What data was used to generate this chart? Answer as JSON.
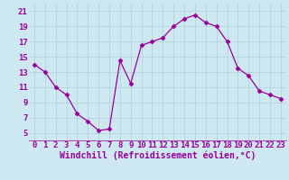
{
  "x": [
    0,
    1,
    2,
    3,
    4,
    5,
    6,
    7,
    8,
    9,
    10,
    11,
    12,
    13,
    14,
    15,
    16,
    17,
    18,
    19,
    20,
    21,
    22,
    23
  ],
  "y": [
    14.0,
    13.0,
    11.0,
    10.0,
    7.5,
    6.5,
    5.3,
    5.5,
    14.5,
    11.5,
    16.5,
    17.0,
    17.5,
    19.0,
    20.0,
    20.5,
    19.5,
    19.0,
    17.0,
    13.5,
    12.5,
    10.5,
    10.0,
    9.5
  ],
  "ylim": [
    4,
    22
  ],
  "xlim": [
    -0.5,
    23.5
  ],
  "yticks": [
    5,
    7,
    9,
    11,
    13,
    15,
    17,
    19,
    21
  ],
  "xticks": [
    0,
    1,
    2,
    3,
    4,
    5,
    6,
    7,
    8,
    9,
    10,
    11,
    12,
    13,
    14,
    15,
    16,
    17,
    18,
    19,
    20,
    21,
    22,
    23
  ],
  "xlabel": "Windchill (Refroidissement éolien,°C)",
  "line_color": "#990099",
  "marker": "D",
  "markersize": 2.5,
  "linewidth": 0.9,
  "bg_color": "#cde8f0",
  "grid_color": "#b0cfd8",
  "tick_label_fontsize": 6.5,
  "xlabel_fontsize": 7.0
}
